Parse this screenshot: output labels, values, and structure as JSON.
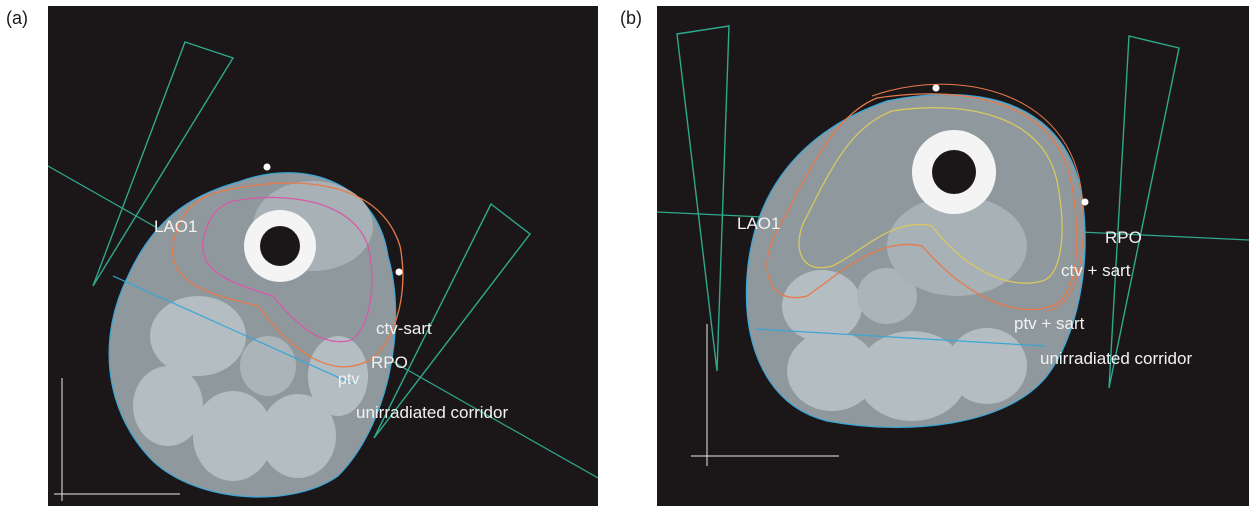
{
  "panels": [
    {
      "letter": "(a)",
      "labels": {
        "lao1": "LAO1",
        "ctv": "ctv-sart",
        "rpo": "RPO",
        "ptv": "ptv",
        "corridor": "unirradiated corridor"
      }
    },
    {
      "letter": "(b)",
      "labels": {
        "lao1": "LAO1",
        "rpo": "RPO",
        "ctv": "ctv + sart",
        "ptv": "ptv + sart",
        "corridor": "unirradiated corridor"
      }
    }
  ],
  "colors": {
    "background": "#1b1718",
    "beam": "#2fa88c",
    "corridor": "#3aa6d6",
    "ptv": "#e87a4a",
    "ctv_a": "#d65aa8",
    "ctv_b": "#d8c860",
    "tissue": "#8f989c",
    "muscle": "#b3bdc2",
    "bone": "#f4f4f4"
  }
}
